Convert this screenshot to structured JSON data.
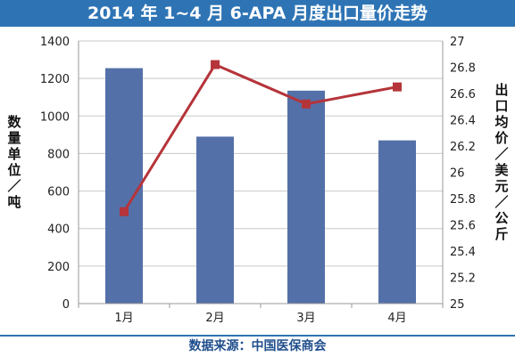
{
  "title": "2014 年 1~4 月 6-APA 月度出口量价走势",
  "source": "数据来源：中国医保商会",
  "chart_data": {
    "type": "bar",
    "title": "2014 年 1~4 月 6-APA 月度出口量价走势",
    "categories": [
      "1月",
      "2月",
      "3月",
      "4月"
    ],
    "series": [
      {
        "values": [
          1255,
          890,
          1135,
          870
        ],
        "chart": "bar",
        "axis": "left",
        "color": "#5470a8"
      },
      {
        "values": [
          25.7,
          26.82,
          26.52,
          26.65
        ],
        "chart": "line",
        "axis": "right",
        "color": "#b5343a"
      }
    ],
    "ylabel": "数量单位／吨",
    "y2label": "出口均价／美元／公斤",
    "ylim": [
      0,
      1400
    ],
    "y2lim": [
      25,
      27
    ],
    "yticks": [
      "0",
      "200",
      "400",
      "600",
      "800",
      "1000",
      "1200",
      "1400"
    ],
    "y2ticks": [
      "25",
      "25.2",
      "25.4",
      "25.6",
      "25.8",
      "26",
      "26.2",
      "26.4",
      "26.6",
      "26.8",
      "27"
    ],
    "grid": true,
    "legend": "none"
  }
}
